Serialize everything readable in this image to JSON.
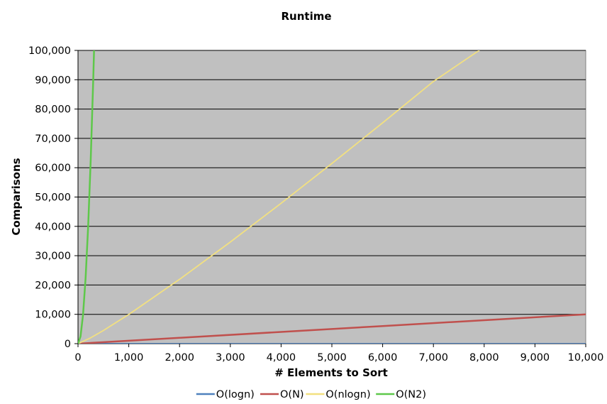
{
  "chart_data": {
    "type": "line",
    "title": "Runtime",
    "xlabel": "# Elements to Sort",
    "ylabel": "Comparisons",
    "xlim": [
      0,
      10000
    ],
    "ylim": [
      0,
      100000
    ],
    "x_ticks": [
      0,
      1000,
      2000,
      3000,
      4000,
      5000,
      6000,
      7000,
      8000,
      9000,
      10000
    ],
    "x_tick_labels": [
      "0",
      "1,000",
      "2,000",
      "3,000",
      "4,000",
      "5,000",
      "6,000",
      "7,000",
      "8,000",
      "9,000",
      "10,000"
    ],
    "y_ticks": [
      0,
      10000,
      20000,
      30000,
      40000,
      50000,
      60000,
      70000,
      80000,
      90000,
      100000
    ],
    "y_tick_labels": [
      "0",
      "10,000",
      "20,000",
      "30,000",
      "40,000",
      "50,000",
      "60,000",
      "70,000",
      "80,000",
      "90,000",
      "100,000"
    ],
    "grid": "horizontal",
    "plot_background": "#c0c0c0",
    "legend_position": "bottom",
    "series": [
      {
        "name": "O(logn)",
        "color": "#4f81bd",
        "x": [
          1,
          100,
          1000,
          2000,
          4000,
          6000,
          8000,
          10000
        ],
        "values": [
          0,
          7,
          10,
          11,
          12,
          13,
          13,
          13
        ]
      },
      {
        "name": "O(N)",
        "color": "#c0504d",
        "x": [
          1,
          100,
          1000,
          2000,
          4000,
          6000,
          8000,
          10000
        ],
        "values": [
          1,
          100,
          1000,
          2000,
          4000,
          6000,
          8000,
          10000
        ]
      },
      {
        "name": "O(nlogn)",
        "color": "#f2e080",
        "x": [
          1,
          250,
          500,
          1000,
          2000,
          3000,
          4000,
          5000,
          6000,
          7000,
          7900
        ],
        "values": [
          0,
          1993,
          4483,
          9966,
          21932,
          34652,
          47863,
          61439,
          75304,
          89412,
          100000
        ]
      },
      {
        "name": "O(N2)",
        "color": "#5ec84a",
        "x": [
          1,
          50,
          100,
          150,
          200,
          250,
          300,
          316
        ],
        "values": [
          1,
          2500,
          10000,
          22500,
          40000,
          62500,
          90000,
          100000
        ]
      }
    ]
  }
}
